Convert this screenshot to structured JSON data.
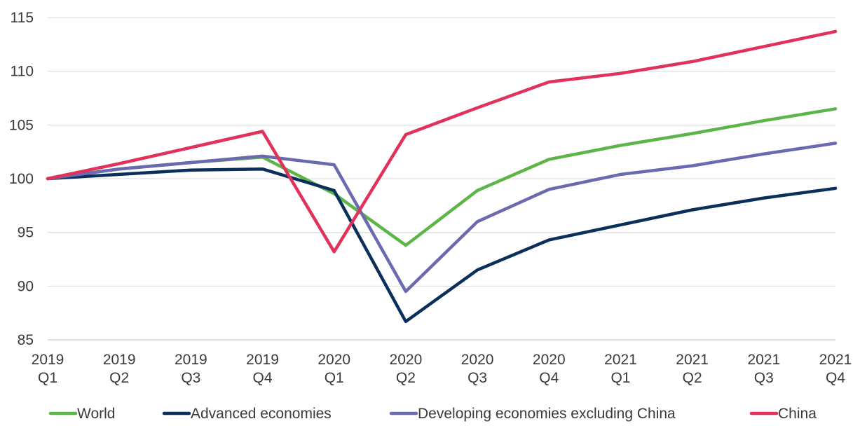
{
  "chart_data": {
    "type": "line",
    "title": "",
    "xlabel": "",
    "ylabel": "",
    "ylim": [
      85,
      115
    ],
    "yticks": [
      85,
      90,
      95,
      100,
      105,
      110,
      115
    ],
    "grid": true,
    "legend_position": "bottom",
    "categories": [
      [
        "2019",
        "Q1"
      ],
      [
        "2019",
        "Q2"
      ],
      [
        "2019",
        "Q3"
      ],
      [
        "2019",
        "Q4"
      ],
      [
        "2020",
        "Q1"
      ],
      [
        "2020",
        "Q2"
      ],
      [
        "2020",
        "Q3"
      ],
      [
        "2020",
        "Q4"
      ],
      [
        "2021",
        "Q1"
      ],
      [
        "2021",
        "Q2"
      ],
      [
        "2021",
        "Q3"
      ],
      [
        "2021",
        "Q4"
      ]
    ],
    "series": [
      {
        "name": "World",
        "color": "#5cb548",
        "values": [
          100,
          100.9,
          101.5,
          102.0,
          98.6,
          93.8,
          98.9,
          101.8,
          103.1,
          104.2,
          105.4,
          106.5
        ]
      },
      {
        "name": "Advanced economies",
        "color": "#0b2f5b",
        "values": [
          100,
          100.4,
          100.8,
          100.9,
          98.9,
          86.7,
          91.5,
          94.3,
          95.7,
          97.1,
          98.2,
          99.1
        ]
      },
      {
        "name": "Developing economies excluding China",
        "color": "#6b6ab0",
        "values": [
          100,
          100.9,
          101.5,
          102.1,
          101.3,
          89.5,
          96.0,
          99.0,
          100.4,
          101.2,
          102.3,
          103.3
        ]
      },
      {
        "name": "China",
        "color": "#e0325a",
        "values": [
          100,
          101.4,
          102.9,
          104.4,
          93.2,
          104.1,
          106.6,
          109.0,
          109.8,
          110.9,
          112.3,
          113.7
        ]
      }
    ]
  }
}
